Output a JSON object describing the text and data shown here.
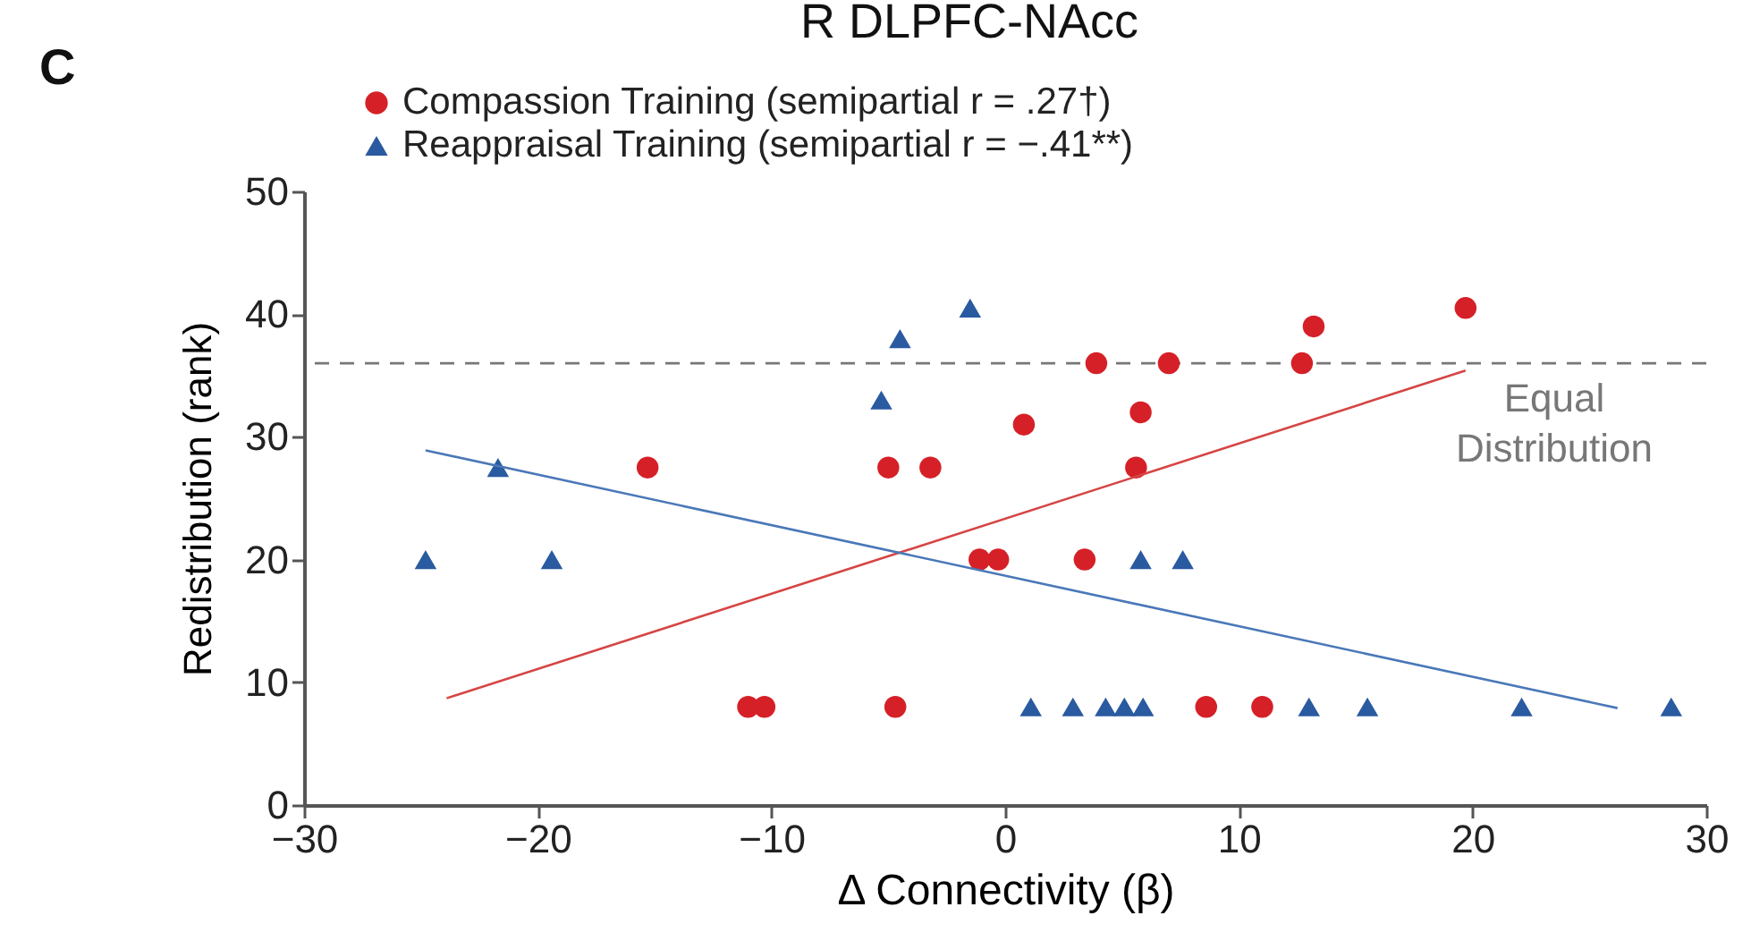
{
  "chart_data": {
    "type": "scatter",
    "title": "R DLPFC-NAcc",
    "xlabel": "Δ Connectivity (β)",
    "ylabel": "Redistribution (rank)",
    "annotations": [
      "C"
    ],
    "xlim": [
      -30,
      30
    ],
    "xticks": [
      -30,
      -20,
      -10,
      0,
      10,
      20,
      30
    ],
    "ylim": [
      0,
      50
    ],
    "yticks": [
      0,
      10,
      20,
      30,
      40,
      50
    ],
    "grid": false,
    "legend": "top left",
    "series": [
      {
        "name": "Compassion Training (semipartial r = .27†)",
        "marker": "circle",
        "color": "#d62027",
        "x": [
          -15.3,
          -5.0,
          -3.2,
          0.8,
          -1.1,
          -0.3,
          -11.0,
          -10.3,
          -4.7,
          3.9,
          7.0,
          12.7,
          13.2,
          19.7,
          5.8,
          5.6,
          3.4,
          8.6,
          11.0
        ],
        "values": [
          27.5,
          27.5,
          27.5,
          31,
          20,
          20,
          8,
          8,
          8,
          36,
          36,
          36,
          39,
          40.5,
          32,
          27.5,
          20,
          8,
          8
        ]
      },
      {
        "name": "Reappraisal Training (semipartial r = −.41**)",
        "marker": "triangle",
        "color": "#2a5aa0",
        "x": [
          -1.5,
          -4.5,
          -5.3,
          -21.7,
          -24.8,
          -19.4,
          5.8,
          7.6,
          1.1,
          2.9,
          4.3,
          5.1,
          5.9,
          13.0,
          15.5,
          22.1,
          28.5
        ],
        "values": [
          40.5,
          38,
          33,
          27.5,
          20,
          20,
          20,
          20,
          8,
          8,
          8,
          8,
          8,
          8,
          8,
          8,
          8
        ]
      },
      {
        "type": "line",
        "color": "#d64545",
        "x": [
          -23.9,
          19.7
        ],
        "values": [
          8.7,
          35.4
        ]
      },
      {
        "type": "line",
        "color": "#4a78b8",
        "x": [
          -24.8,
          26.2
        ],
        "values": [
          28.9,
          7.9
        ]
      }
    ],
    "ref_lines": [
      {
        "axis": "y",
        "value": 36,
        "label": "Equal Distribution",
        "color": "#777777",
        "line_style": "dashed"
      }
    ]
  }
}
